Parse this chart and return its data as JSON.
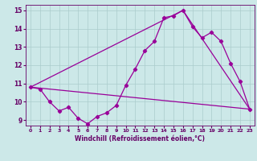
{
  "xlabel": "Windchill (Refroidissement éolien,°C)",
  "xlim": [
    -0.5,
    23.5
  ],
  "ylim": [
    8.7,
    15.3
  ],
  "yticks": [
    9,
    10,
    11,
    12,
    13,
    14,
    15
  ],
  "xticks": [
    0,
    1,
    2,
    3,
    4,
    5,
    6,
    7,
    8,
    9,
    10,
    11,
    12,
    13,
    14,
    15,
    16,
    17,
    18,
    19,
    20,
    21,
    22,
    23
  ],
  "bg_color": "#cce8e8",
  "grid_color": "#aacccc",
  "line_color": "#990099",
  "line1_x": [
    0,
    1,
    2,
    3,
    4,
    5,
    6,
    7,
    8,
    9,
    10,
    11,
    12,
    13,
    14,
    15,
    16,
    17,
    18,
    19,
    20,
    21,
    22,
    23
  ],
  "line1_y": [
    10.8,
    10.7,
    10.0,
    9.5,
    9.7,
    9.1,
    8.8,
    9.2,
    9.4,
    9.8,
    10.9,
    11.8,
    12.8,
    13.3,
    14.6,
    14.7,
    15.0,
    14.1,
    13.5,
    13.8,
    13.3,
    12.1,
    11.1,
    9.6
  ],
  "line2_x": [
    0,
    16,
    23
  ],
  "line2_y": [
    10.8,
    15.0,
    9.6
  ],
  "line3_x": [
    0,
    23
  ],
  "line3_y": [
    10.8,
    9.6
  ],
  "tick_color": "#660066",
  "label_fontsize": 5.5,
  "xlabel_fontsize": 5.5
}
